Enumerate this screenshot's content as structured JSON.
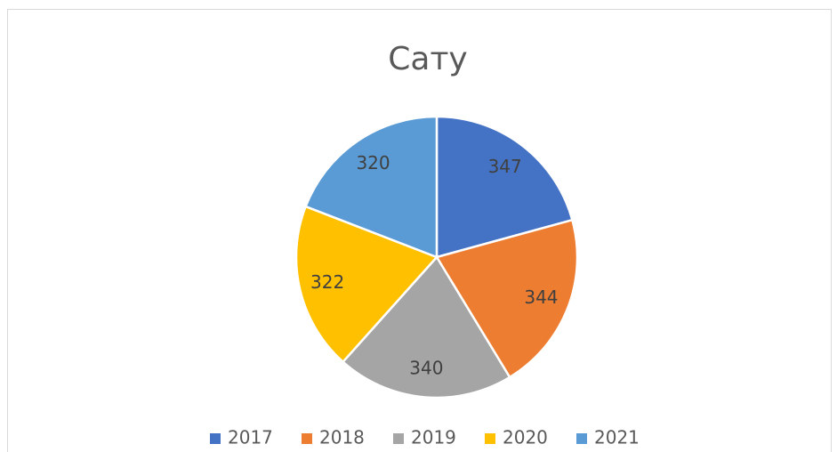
{
  "chart_data": {
    "type": "pie",
    "title": "Сату",
    "categories": [
      "2017",
      "2018",
      "2019",
      "2020",
      "2021"
    ],
    "values": [
      347,
      344,
      340,
      322,
      320
    ],
    "colors": [
      "#4472c4",
      "#ed7d31",
      "#a5a5a5",
      "#ffc000",
      "#5b9bd5"
    ],
    "legend": "bottom"
  }
}
